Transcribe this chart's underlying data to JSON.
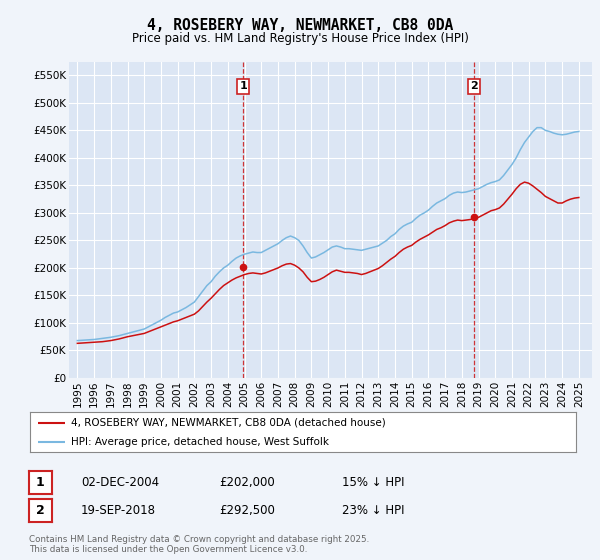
{
  "title": "4, ROSEBERY WAY, NEWMARKET, CB8 0DA",
  "subtitle": "Price paid vs. HM Land Registry's House Price Index (HPI)",
  "ylim": [
    0,
    575000
  ],
  "yticks": [
    0,
    50000,
    100000,
    150000,
    200000,
    250000,
    300000,
    350000,
    400000,
    450000,
    500000,
    550000
  ],
  "ytick_labels": [
    "£0",
    "£50K",
    "£100K",
    "£150K",
    "£200K",
    "£250K",
    "£300K",
    "£350K",
    "£400K",
    "£450K",
    "£500K",
    "£550K"
  ],
  "xlim_start": 1994.5,
  "xlim_end": 2025.8,
  "xticks": [
    1995,
    1996,
    1997,
    1998,
    1999,
    2000,
    2001,
    2002,
    2003,
    2004,
    2005,
    2006,
    2007,
    2008,
    2009,
    2010,
    2011,
    2012,
    2013,
    2014,
    2015,
    2016,
    2017,
    2018,
    2019,
    2020,
    2021,
    2022,
    2023,
    2024,
    2025
  ],
  "hpi_color": "#7ab8e0",
  "price_color": "#cc1111",
  "vline_color": "#cc2222",
  "background_color": "#f0f4fa",
  "plot_bg": "#dce6f4",
  "grid_color": "#ffffff",
  "sale1_x": 2004.92,
  "sale1_y": 202000,
  "sale2_x": 2018.72,
  "sale2_y": 292500,
  "sale1_date": "02-DEC-2004",
  "sale1_price": "£202,000",
  "sale1_hpi": "15% ↓ HPI",
  "sale2_date": "19-SEP-2018",
  "sale2_price": "£292,500",
  "sale2_hpi": "23% ↓ HPI",
  "legend_line1": "4, ROSEBERY WAY, NEWMARKET, CB8 0DA (detached house)",
  "legend_line2": "HPI: Average price, detached house, West Suffolk",
  "footer": "Contains HM Land Registry data © Crown copyright and database right 2025.\nThis data is licensed under the Open Government Licence v3.0.",
  "hpi_data": [
    [
      1995.0,
      68000
    ],
    [
      1995.25,
      68500
    ],
    [
      1995.5,
      69000
    ],
    [
      1995.75,
      69500
    ],
    [
      1996.0,
      70000
    ],
    [
      1996.25,
      71000
    ],
    [
      1996.5,
      72000
    ],
    [
      1996.75,
      73000
    ],
    [
      1997.0,
      74000
    ],
    [
      1997.25,
      75500
    ],
    [
      1997.5,
      77000
    ],
    [
      1997.75,
      79000
    ],
    [
      1998.0,
      81000
    ],
    [
      1998.25,
      83000
    ],
    [
      1998.5,
      85000
    ],
    [
      1998.75,
      87000
    ],
    [
      1999.0,
      89000
    ],
    [
      1999.25,
      93000
    ],
    [
      1999.5,
      97000
    ],
    [
      1999.75,
      101000
    ],
    [
      2000.0,
      105000
    ],
    [
      2000.25,
      110000
    ],
    [
      2000.5,
      114000
    ],
    [
      2000.75,
      118000
    ],
    [
      2001.0,
      120000
    ],
    [
      2001.25,
      124000
    ],
    [
      2001.5,
      128000
    ],
    [
      2001.75,
      133000
    ],
    [
      2002.0,
      138000
    ],
    [
      2002.25,
      148000
    ],
    [
      2002.5,
      158000
    ],
    [
      2002.75,
      168000
    ],
    [
      2003.0,
      175000
    ],
    [
      2003.25,
      185000
    ],
    [
      2003.5,
      193000
    ],
    [
      2003.75,
      200000
    ],
    [
      2004.0,
      205000
    ],
    [
      2004.25,
      212000
    ],
    [
      2004.5,
      218000
    ],
    [
      2004.75,
      222000
    ],
    [
      2005.0,
      225000
    ],
    [
      2005.25,
      227000
    ],
    [
      2005.5,
      229000
    ],
    [
      2005.75,
      228000
    ],
    [
      2006.0,
      228000
    ],
    [
      2006.25,
      232000
    ],
    [
      2006.5,
      236000
    ],
    [
      2006.75,
      240000
    ],
    [
      2007.0,
      244000
    ],
    [
      2007.25,
      250000
    ],
    [
      2007.5,
      255000
    ],
    [
      2007.75,
      258000
    ],
    [
      2008.0,
      255000
    ],
    [
      2008.25,
      250000
    ],
    [
      2008.5,
      240000
    ],
    [
      2008.75,
      228000
    ],
    [
      2009.0,
      218000
    ],
    [
      2009.25,
      220000
    ],
    [
      2009.5,
      224000
    ],
    [
      2009.75,
      228000
    ],
    [
      2010.0,
      233000
    ],
    [
      2010.25,
      238000
    ],
    [
      2010.5,
      240000
    ],
    [
      2010.75,
      238000
    ],
    [
      2011.0,
      235000
    ],
    [
      2011.25,
      235000
    ],
    [
      2011.5,
      234000
    ],
    [
      2011.75,
      233000
    ],
    [
      2012.0,
      232000
    ],
    [
      2012.25,
      234000
    ],
    [
      2012.5,
      236000
    ],
    [
      2012.75,
      238000
    ],
    [
      2013.0,
      240000
    ],
    [
      2013.25,
      245000
    ],
    [
      2013.5,
      250000
    ],
    [
      2013.75,
      257000
    ],
    [
      2014.0,
      262000
    ],
    [
      2014.25,
      270000
    ],
    [
      2014.5,
      276000
    ],
    [
      2014.75,
      280000
    ],
    [
      2015.0,
      283000
    ],
    [
      2015.25,
      290000
    ],
    [
      2015.5,
      296000
    ],
    [
      2015.75,
      300000
    ],
    [
      2016.0,
      305000
    ],
    [
      2016.25,
      312000
    ],
    [
      2016.5,
      318000
    ],
    [
      2016.75,
      322000
    ],
    [
      2017.0,
      326000
    ],
    [
      2017.25,
      332000
    ],
    [
      2017.5,
      336000
    ],
    [
      2017.75,
      338000
    ],
    [
      2018.0,
      337000
    ],
    [
      2018.25,
      338000
    ],
    [
      2018.5,
      340000
    ],
    [
      2018.75,
      342000
    ],
    [
      2019.0,
      344000
    ],
    [
      2019.25,
      348000
    ],
    [
      2019.5,
      352000
    ],
    [
      2019.75,
      355000
    ],
    [
      2020.0,
      357000
    ],
    [
      2020.25,
      360000
    ],
    [
      2020.5,
      368000
    ],
    [
      2020.75,
      378000
    ],
    [
      2021.0,
      388000
    ],
    [
      2021.25,
      400000
    ],
    [
      2021.5,
      415000
    ],
    [
      2021.75,
      428000
    ],
    [
      2022.0,
      438000
    ],
    [
      2022.25,
      448000
    ],
    [
      2022.5,
      455000
    ],
    [
      2022.75,
      455000
    ],
    [
      2023.0,
      450000
    ],
    [
      2023.25,
      448000
    ],
    [
      2023.5,
      445000
    ],
    [
      2023.75,
      443000
    ],
    [
      2024.0,
      442000
    ],
    [
      2024.25,
      443000
    ],
    [
      2024.5,
      445000
    ],
    [
      2024.75,
      447000
    ],
    [
      2025.0,
      448000
    ]
  ],
  "price_data": [
    [
      1995.0,
      63000
    ],
    [
      1995.25,
      63500
    ],
    [
      1995.5,
      64000
    ],
    [
      1995.75,
      64500
    ],
    [
      1996.0,
      65000
    ],
    [
      1996.25,
      65500
    ],
    [
      1996.5,
      66000
    ],
    [
      1996.75,
      67000
    ],
    [
      1997.0,
      68000
    ],
    [
      1997.25,
      69500
    ],
    [
      1997.5,
      71000
    ],
    [
      1997.75,
      73000
    ],
    [
      1998.0,
      75000
    ],
    [
      1998.25,
      76500
    ],
    [
      1998.5,
      78000
    ],
    [
      1998.75,
      79500
    ],
    [
      1999.0,
      81000
    ],
    [
      1999.25,
      84000
    ],
    [
      1999.5,
      87000
    ],
    [
      1999.75,
      90000
    ],
    [
      2000.0,
      93000
    ],
    [
      2000.25,
      96000
    ],
    [
      2000.5,
      99000
    ],
    [
      2000.75,
      102000
    ],
    [
      2001.0,
      104000
    ],
    [
      2001.25,
      107000
    ],
    [
      2001.5,
      110000
    ],
    [
      2001.75,
      113000
    ],
    [
      2002.0,
      116000
    ],
    [
      2002.25,
      122000
    ],
    [
      2002.5,
      130000
    ],
    [
      2002.75,
      138000
    ],
    [
      2003.0,
      145000
    ],
    [
      2003.25,
      153000
    ],
    [
      2003.5,
      161000
    ],
    [
      2003.75,
      168000
    ],
    [
      2004.0,
      173000
    ],
    [
      2004.25,
      178000
    ],
    [
      2004.5,
      182000
    ],
    [
      2004.75,
      185000
    ],
    [
      2005.0,
      188000
    ],
    [
      2005.25,
      190000
    ],
    [
      2005.5,
      191000
    ],
    [
      2005.75,
      190000
    ],
    [
      2006.0,
      189000
    ],
    [
      2006.25,
      191000
    ],
    [
      2006.5,
      194000
    ],
    [
      2006.75,
      197000
    ],
    [
      2007.0,
      200000
    ],
    [
      2007.25,
      204000
    ],
    [
      2007.5,
      207000
    ],
    [
      2007.75,
      208000
    ],
    [
      2008.0,
      205000
    ],
    [
      2008.25,
      200000
    ],
    [
      2008.5,
      193000
    ],
    [
      2008.75,
      183000
    ],
    [
      2009.0,
      175000
    ],
    [
      2009.25,
      176000
    ],
    [
      2009.5,
      179000
    ],
    [
      2009.75,
      183000
    ],
    [
      2010.0,
      188000
    ],
    [
      2010.25,
      193000
    ],
    [
      2010.5,
      196000
    ],
    [
      2010.75,
      194000
    ],
    [
      2011.0,
      192000
    ],
    [
      2011.25,
      192000
    ],
    [
      2011.5,
      191000
    ],
    [
      2011.75,
      190000
    ],
    [
      2012.0,
      188000
    ],
    [
      2012.25,
      190000
    ],
    [
      2012.5,
      193000
    ],
    [
      2012.75,
      196000
    ],
    [
      2013.0,
      199000
    ],
    [
      2013.25,
      204000
    ],
    [
      2013.5,
      210000
    ],
    [
      2013.75,
      216000
    ],
    [
      2014.0,
      221000
    ],
    [
      2014.25,
      228000
    ],
    [
      2014.5,
      234000
    ],
    [
      2014.75,
      238000
    ],
    [
      2015.0,
      241000
    ],
    [
      2015.25,
      247000
    ],
    [
      2015.5,
      252000
    ],
    [
      2015.75,
      256000
    ],
    [
      2016.0,
      260000
    ],
    [
      2016.25,
      265000
    ],
    [
      2016.5,
      270000
    ],
    [
      2016.75,
      273000
    ],
    [
      2017.0,
      277000
    ],
    [
      2017.25,
      282000
    ],
    [
      2017.5,
      285000
    ],
    [
      2017.75,
      287000
    ],
    [
      2018.0,
      286000
    ],
    [
      2018.25,
      287000
    ],
    [
      2018.5,
      288000
    ],
    [
      2018.75,
      290000
    ],
    [
      2019.0,
      292000
    ],
    [
      2019.25,
      296000
    ],
    [
      2019.5,
      300000
    ],
    [
      2019.75,
      304000
    ],
    [
      2020.0,
      306000
    ],
    [
      2020.25,
      309000
    ],
    [
      2020.5,
      316000
    ],
    [
      2020.75,
      325000
    ],
    [
      2021.0,
      334000
    ],
    [
      2021.25,
      344000
    ],
    [
      2021.5,
      352000
    ],
    [
      2021.75,
      356000
    ],
    [
      2022.0,
      354000
    ],
    [
      2022.25,
      349000
    ],
    [
      2022.5,
      343000
    ],
    [
      2022.75,
      337000
    ],
    [
      2023.0,
      330000
    ],
    [
      2023.25,
      326000
    ],
    [
      2023.5,
      322000
    ],
    [
      2023.75,
      318000
    ],
    [
      2024.0,
      318000
    ],
    [
      2024.25,
      322000
    ],
    [
      2024.5,
      325000
    ],
    [
      2024.75,
      327000
    ],
    [
      2025.0,
      328000
    ]
  ]
}
